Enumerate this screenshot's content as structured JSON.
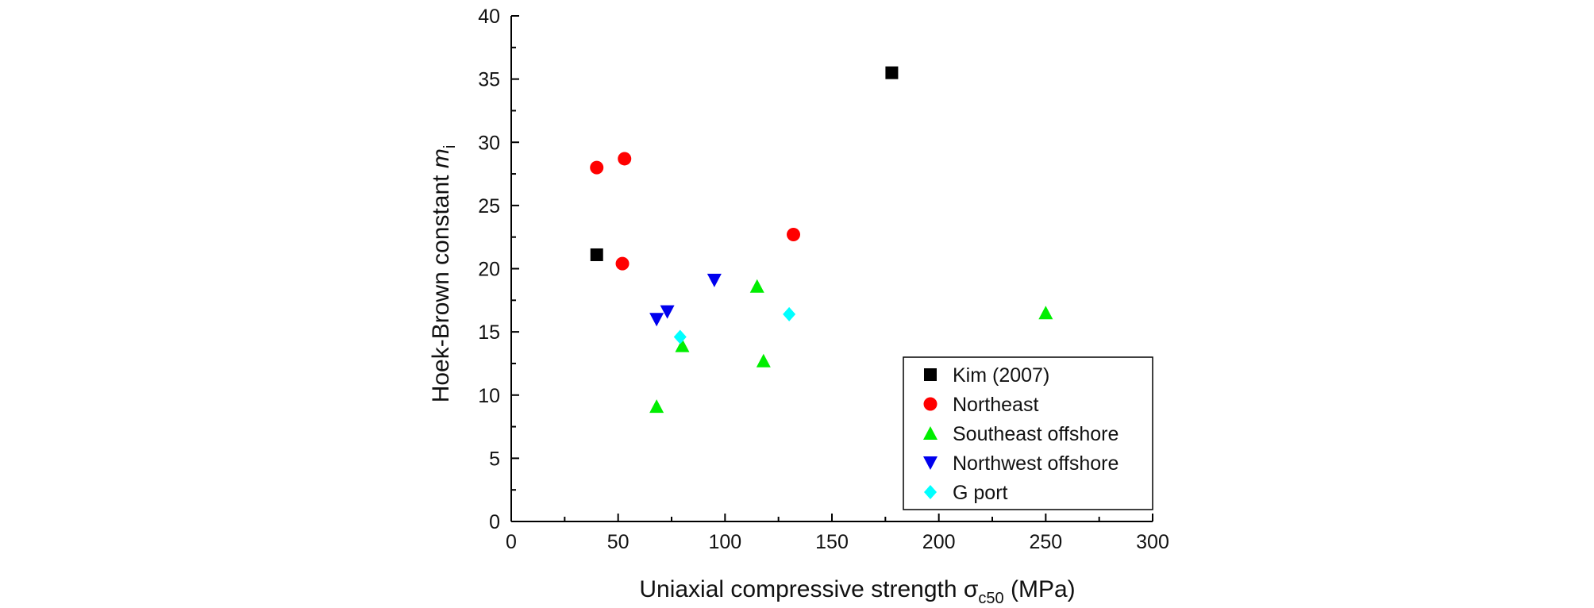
{
  "chart_data": {
    "type": "scatter",
    "title": "",
    "xlabel": {
      "prefix": "Uniaxial compressive strength ",
      "symbol": "σ",
      "subscript": "c50",
      "suffix": " (MPa)"
    },
    "ylabel": {
      "prefix": "Hoek-Brown constant ",
      "symbol": "m",
      "subscript": "i"
    },
    "xlim": [
      0,
      300
    ],
    "ylim": [
      0,
      40
    ],
    "x_ticks": [
      0,
      50,
      100,
      150,
      200,
      250,
      300
    ],
    "y_ticks": [
      0,
      5,
      10,
      15,
      20,
      25,
      30,
      35,
      40
    ],
    "grid": false,
    "legend_position": "bottom-right",
    "series": [
      {
        "name": "Kim (2007)",
        "marker": "square",
        "color": "#000000",
        "points": [
          {
            "x": 40,
            "y": 21.1
          },
          {
            "x": 178,
            "y": 35.5
          }
        ]
      },
      {
        "name": "Northeast",
        "marker": "circle",
        "color": "#ff0000",
        "points": [
          {
            "x": 40,
            "y": 28.0
          },
          {
            "x": 53,
            "y": 28.7
          },
          {
            "x": 52,
            "y": 20.4
          },
          {
            "x": 132,
            "y": 22.7
          }
        ]
      },
      {
        "name": "Southeast offshore",
        "marker": "triangle-up",
        "color": "#00ee00",
        "points": [
          {
            "x": 68,
            "y": 9.1
          },
          {
            "x": 80,
            "y": 13.9
          },
          {
            "x": 115,
            "y": 18.6
          },
          {
            "x": 118,
            "y": 12.7
          },
          {
            "x": 250,
            "y": 16.5
          }
        ]
      },
      {
        "name": "Northwest offshore",
        "marker": "triangle-down",
        "color": "#0000ee",
        "points": [
          {
            "x": 68,
            "y": 16.0
          },
          {
            "x": 73,
            "y": 16.6
          },
          {
            "x": 95,
            "y": 19.1
          }
        ]
      },
      {
        "name": "G port",
        "marker": "diamond",
        "color": "#00ffff",
        "points": [
          {
            "x": 79,
            "y": 14.6
          },
          {
            "x": 130,
            "y": 16.4
          }
        ]
      }
    ]
  }
}
